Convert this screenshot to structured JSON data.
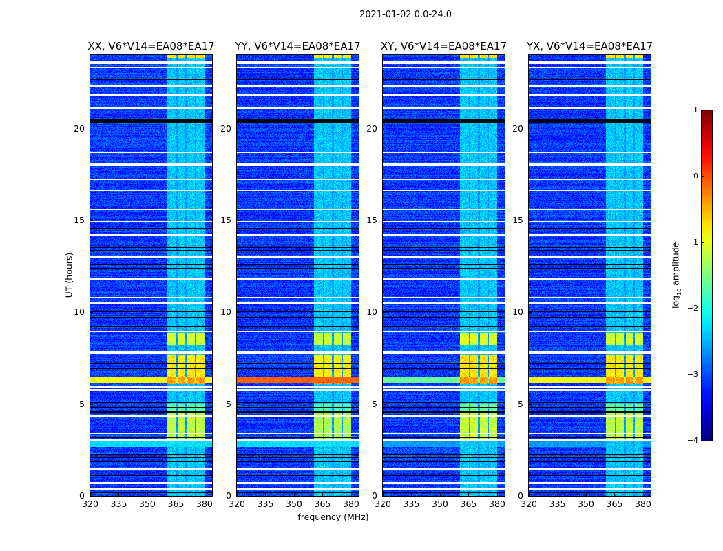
{
  "figure_title": "2021-01-02 0.0-24.0",
  "chart_data": {
    "type": "heatmap",
    "title": "2021-01-02 0.0-24.0",
    "xlabel": "frequency (MHz)",
    "ylabel": "UT (hours)",
    "xlim": [
      320,
      384
    ],
    "ylim": [
      0,
      24
    ],
    "xticks": [
      "320",
      "335",
      "350",
      "365",
      "380"
    ],
    "xtick_values": [
      320,
      335,
      350,
      365,
      380
    ],
    "yticks": [
      "0",
      "5",
      "10",
      "15",
      "20"
    ],
    "ytick_values": [
      0,
      5,
      10,
      15,
      20
    ],
    "colorbar": {
      "label_prefix": "log",
      "label_sub": "10",
      "label_suffix": " amplitude",
      "colormap": "jet",
      "range": [
        -4,
        1
      ],
      "ticks": [
        "−4",
        "−3",
        "−2",
        "−1",
        "0",
        "1"
      ],
      "tick_values": [
        -4,
        -3,
        -2,
        -1,
        0,
        1
      ]
    },
    "background_level": -3.1,
    "flagged_times_hours": [
      [
        23.5,
        23.65
      ],
      [
        23.28,
        23.35
      ],
      [
        22.28,
        22.35
      ],
      [
        21.78,
        21.85
      ],
      [
        21.08,
        21.15
      ],
      [
        18.68,
        18.75
      ],
      [
        17.95,
        18.1
      ],
      [
        17.18,
        17.25
      ],
      [
        16.58,
        16.65
      ],
      [
        15.58,
        15.65
      ],
      [
        14.88,
        14.95
      ],
      [
        14.18,
        14.25
      ],
      [
        12.98,
        13.05
      ],
      [
        11.78,
        11.85
      ],
      [
        10.78,
        10.85
      ],
      [
        10.42,
        10.52
      ],
      [
        8.92,
        8.98
      ],
      [
        7.72,
        7.9
      ],
      [
        5.9,
        6.0
      ],
      [
        5.72,
        5.8
      ],
      [
        4.3,
        4.37
      ],
      [
        3.37,
        3.42
      ],
      [
        3.0,
        3.06
      ],
      [
        1.43,
        1.5
      ],
      [
        0.68,
        0.74
      ],
      [
        0.33,
        0.42
      ]
    ],
    "dropout_times_hours": [
      [
        20.3,
        20.5
      ],
      [
        22.65,
        22.7
      ],
      [
        22.45,
        22.5
      ],
      [
        14.55,
        14.6
      ],
      [
        14.4,
        14.45
      ],
      [
        13.5,
        13.55
      ],
      [
        13.35,
        13.4
      ],
      [
        12.55,
        12.6
      ],
      [
        12.35,
        12.4
      ],
      [
        10.0,
        10.04
      ],
      [
        9.7,
        9.74
      ],
      [
        9.45,
        9.5
      ],
      [
        9.2,
        9.24
      ],
      [
        7.2,
        7.25
      ],
      [
        6.9,
        6.94
      ],
      [
        5.05,
        5.1
      ],
      [
        4.8,
        4.85
      ],
      [
        4.55,
        4.6
      ],
      [
        3.15,
        3.2
      ],
      [
        2.25,
        2.3
      ],
      [
        2.05,
        2.1
      ],
      [
        1.85,
        1.9
      ],
      [
        1.6,
        1.65
      ],
      [
        1.1,
        1.14
      ],
      [
        0.15,
        0.2
      ]
    ],
    "rfi_band_mhz": [
      360.5,
      380
    ],
    "rfi_channel_gaps_mhz": [
      365.6,
      370.4,
      375.3
    ],
    "rfi_band_default_level": -2.4,
    "rfi_band_events": [
      {
        "t": [
          23.85,
          24.0
        ],
        "level": -0.8
      },
      {
        "t": [
          8.2,
          8.9
        ],
        "level": -1.1
      },
      {
        "t": [
          6.5,
          7.7
        ],
        "level": -0.8
      },
      {
        "t": [
          6.1,
          6.5
        ],
        "level": -0.4
      },
      {
        "t": [
          3.1,
          4.5
        ],
        "level": -1.2
      },
      {
        "t": [
          4.5,
          5.0
        ],
        "level": -1.7
      }
    ],
    "broadband_events": [
      {
        "t": [
          2.65,
          3.0
        ],
        "levels": [
          -2.3,
          -2.3,
          -2.6,
          -2.6
        ]
      },
      {
        "t": [
          6.15,
          6.5
        ],
        "levels": [
          -0.9,
          -0.1,
          -1.6,
          -0.9
        ]
      }
    ],
    "panels": [
      {
        "title": "XX, V6*V14=EA08*EA17",
        "band_scale": 1.0
      },
      {
        "title": "YY, V6*V14=EA08*EA17",
        "band_scale": 1.05
      },
      {
        "title": "XY, V6*V14=EA08*EA17",
        "band_scale": 0.95
      },
      {
        "title": "YX, V6*V14=EA08*EA17",
        "band_scale": 1.0
      }
    ]
  }
}
